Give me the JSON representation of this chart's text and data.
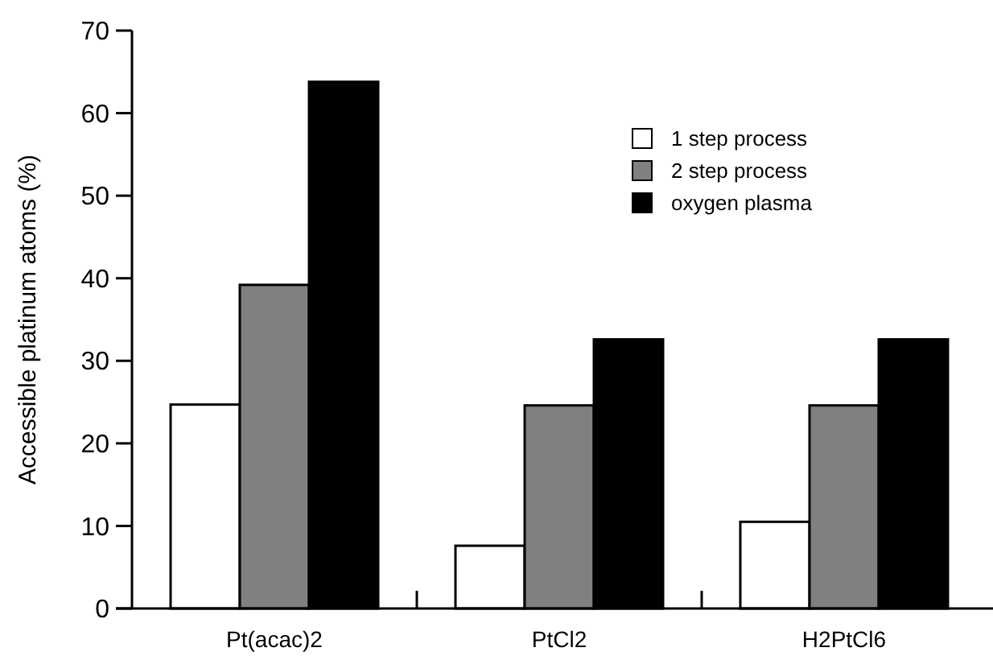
{
  "chart_data": {
    "type": "bar",
    "ylabel": "Accessible platinum atoms (%)",
    "categories": [
      "Pt(acac)2",
      "PtCl2",
      "H2PtCl6"
    ],
    "series": [
      {
        "name": "1 step process",
        "color": "#ffffff",
        "values": [
          24.7,
          7.6,
          10.5
        ]
      },
      {
        "name": "2 step process",
        "color": "#808080",
        "values": [
          39.2,
          24.6,
          24.6
        ]
      },
      {
        "name": "oxygen plasma",
        "color": "#000000",
        "values": [
          63.8,
          32.6,
          32.6
        ]
      }
    ],
    "ylim": [
      0,
      70
    ],
    "yticks": [
      0,
      10,
      20,
      30,
      40,
      50,
      60,
      70
    ],
    "legend": "top right"
  }
}
